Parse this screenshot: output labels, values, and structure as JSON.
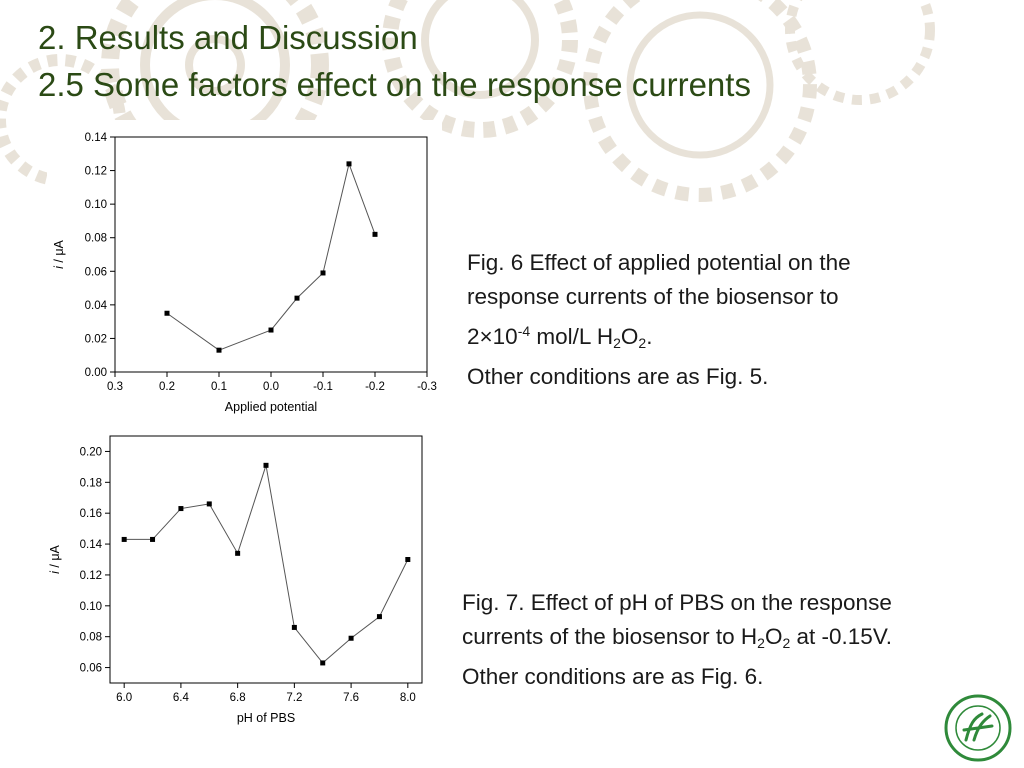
{
  "slide": {
    "title_line1": "2. Results and Discussion",
    "title_line2": "2.5  Some factors effect on the response currents",
    "colors": {
      "title": "#2b4a15",
      "caption": "#1a1a1a",
      "logo": "#2f8a3a"
    }
  },
  "captions": {
    "fig6": {
      "line1": "Fig. 6  Effect of applied potential on the",
      "line2": "response currents of the biosensor to",
      "line3_a": "2",
      "line3_times": "×",
      "line3_b": "10",
      "line3_exp": "-4",
      "line3_c": " mol/L H",
      "line3_sub1": "2",
      "line3_d": "O",
      "line3_sub2": "2",
      "line3_e": ".",
      "line4": "Other conditions are as Fig. 5."
    },
    "fig7": {
      "line1": "Fig. 7.  Effect of pH of PBS on the response",
      "line2_a": "currents of the biosensor to H",
      "line2_sub1": "2",
      "line2_b": "O",
      "line2_sub2": "2",
      "line2_c": " at -0.15V.",
      "line3": "Other conditions are as Fig. 6."
    }
  },
  "logo_icon": "university-emblem-icon",
  "chart_data": [
    {
      "type": "line",
      "xlabel": "Applied potential",
      "ylabel_italic": "i",
      "ylabel_rest": " / μA",
      "xlim": [
        0.3,
        -0.3
      ],
      "ylim": [
        0.0,
        0.14
      ],
      "x_ticks": [
        0.3,
        0.2,
        0.1,
        0.0,
        -0.1,
        -0.2,
        -0.3
      ],
      "x_tick_labels": [
        "0.3",
        "0.2",
        "0.1",
        "0.0",
        "-0.1",
        "-0.2",
        "-0.3"
      ],
      "y_ticks": [
        0.0,
        0.02,
        0.04,
        0.06,
        0.08,
        0.1,
        0.12,
        0.14
      ],
      "y_tick_labels": [
        "0.00",
        "0.02",
        "0.04",
        "0.06",
        "0.08",
        "0.10",
        "0.12",
        "0.14"
      ],
      "marker": "square",
      "x": [
        0.2,
        0.1,
        0.0,
        -0.05,
        -0.1,
        -0.15,
        -0.2
      ],
      "y": [
        0.035,
        0.013,
        0.025,
        0.044,
        0.059,
        0.124,
        0.082
      ]
    },
    {
      "type": "line",
      "xlabel": "pH of PBS",
      "ylabel_italic": "i",
      "ylabel_rest": " / μA",
      "xlim": [
        5.9,
        8.1
      ],
      "ylim": [
        0.05,
        0.21
      ],
      "x_ticks": [
        6.0,
        6.4,
        6.8,
        7.2,
        7.6,
        8.0
      ],
      "x_tick_labels": [
        "6.0",
        "6.4",
        "6.8",
        "7.2",
        "7.6",
        "8.0"
      ],
      "y_ticks": [
        0.06,
        0.08,
        0.1,
        0.12,
        0.14,
        0.16,
        0.18,
        0.2
      ],
      "y_tick_labels": [
        "0.06",
        "0.08",
        "0.10",
        "0.12",
        "0.14",
        "0.16",
        "0.18",
        "0.20"
      ],
      "marker": "square",
      "x": [
        6.0,
        6.2,
        6.4,
        6.6,
        6.8,
        7.0,
        7.2,
        7.4,
        7.6,
        7.8,
        8.0
      ],
      "y": [
        0.143,
        0.143,
        0.163,
        0.166,
        0.134,
        0.191,
        0.086,
        0.063,
        0.079,
        0.093,
        0.13
      ]
    }
  ]
}
